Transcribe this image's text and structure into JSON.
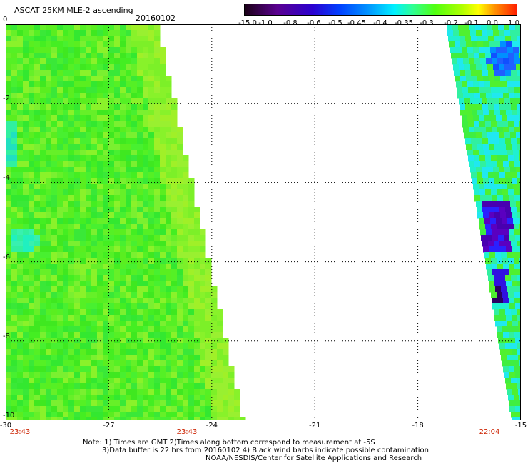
{
  "header": {
    "title": "ASCAT 25KM MLE-2 ascending",
    "date": "20160102"
  },
  "colorbar": {
    "labels": [
      "-15.0",
      "-1.0",
      "-0.8",
      "-0.6",
      "-0.5",
      "-0.45",
      "-0.4",
      "-0.35",
      "-0.3",
      "-0.2",
      "-0.1",
      "0.0",
      "1.0"
    ]
  },
  "axes": {
    "x_ticks": [
      "-30",
      "-27",
      "-24",
      "-21",
      "-18",
      "-15"
    ],
    "y_ticks": [
      "0",
      "-2",
      "-4",
      "-6",
      "-8",
      "-10"
    ],
    "x_range": [
      -30,
      -15
    ],
    "y_range": [
      0,
      -10
    ],
    "grid": true
  },
  "swath_times": [
    "23:43",
    "23:43",
    "22:04"
  ],
  "notes": {
    "line1": "Note: 1) Times are GMT 2)Times along bottom correspond to measurement at -5S",
    "line2": "3)Data buffer is 22 hrs from 20160102 4) Black wind barbs indicate possible contamination",
    "line3": "NOAA/NESDIS/Center for Satellite Applications and Research"
  },
  "colors": {
    "grid": "#000000",
    "time_label": "#cc2200",
    "ocean_green": "#44ee22"
  }
}
